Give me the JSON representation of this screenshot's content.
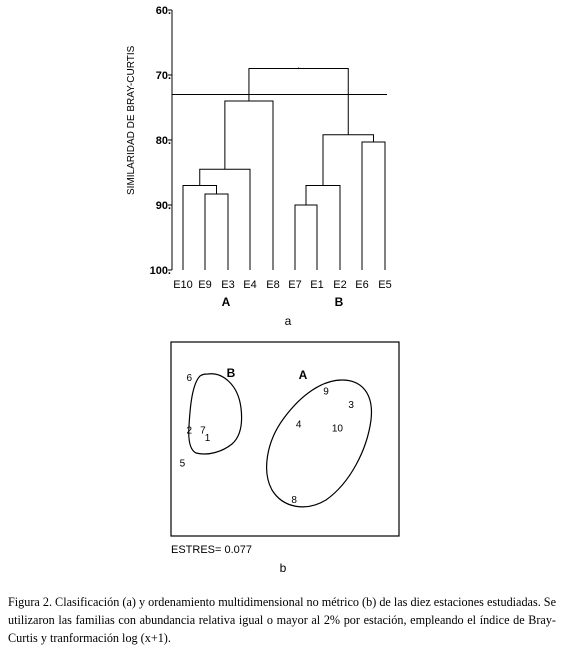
{
  "dendrogram": {
    "panel_label": "a",
    "y_axis_label": "SIMILARIDAD DE BRAY-CURTIS",
    "y_ticks": [
      "60.",
      "70.",
      "80.",
      "90.",
      "100."
    ],
    "leaves": [
      "E10",
      "E9",
      "E3",
      "E4",
      "E8",
      "E7",
      "E1",
      "E2",
      "E6",
      "E5"
    ],
    "group_labels": [
      "A",
      "B"
    ],
    "cut_similarity": 73
  },
  "chart_data": {
    "type": "scatter",
    "title": "",
    "xlabel": "",
    "ylabel": "",
    "points": [
      {
        "label": "6",
        "x": 0.08,
        "y": 0.82
      },
      {
        "label": "2",
        "x": 0.08,
        "y": 0.55
      },
      {
        "label": "7",
        "x": 0.14,
        "y": 0.55
      },
      {
        "label": "1",
        "x": 0.16,
        "y": 0.51
      },
      {
        "label": "5",
        "x": 0.05,
        "y": 0.38
      },
      {
        "label": "9",
        "x": 0.68,
        "y": 0.75
      },
      {
        "label": "3",
        "x": 0.79,
        "y": 0.68
      },
      {
        "label": "4",
        "x": 0.56,
        "y": 0.58
      },
      {
        "label": "10",
        "x": 0.73,
        "y": 0.56
      },
      {
        "label": "8",
        "x": 0.54,
        "y": 0.19
      }
    ],
    "groups": [
      {
        "name": "B",
        "members": [
          "6",
          "2",
          "7",
          "1",
          "5"
        ]
      },
      {
        "name": "A",
        "members": [
          "9",
          "3",
          "4",
          "10",
          "8"
        ]
      }
    ],
    "stress_label": "ESTRES= 0.077"
  },
  "mds": {
    "panel_label": "b"
  },
  "caption": "Figura 2. Clasificación (a) y ordenamiento multidimensional no métrico (b) de las diez estaciones estudiadas. Se utilizaron las familias con abundancia relativa igual o mayor al 2% por estación, empleando el índice de Bray-Curtis y tranformación log (x+1)."
}
